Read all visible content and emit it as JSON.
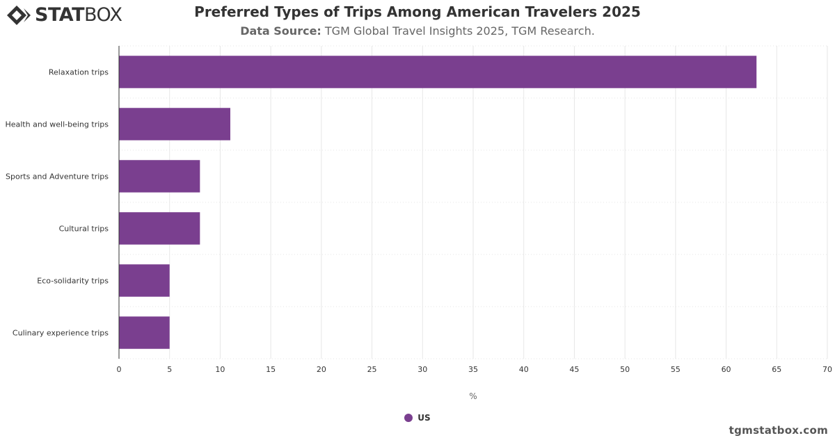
{
  "brand": {
    "logo_bold": "STAT",
    "logo_light": "BOX",
    "credit": "tgmstatbox.com"
  },
  "header": {
    "title": "Preferred Types of Trips Among American Travelers 2025",
    "source_label": "Data Source:",
    "source_text": " TGM Global Travel Insights 2025, TGM Research."
  },
  "colors": {
    "bar": "#7a3f8f",
    "grid": "#e6e6e6",
    "axis": "#333333"
  },
  "chart_data": {
    "type": "bar",
    "orientation": "horizontal",
    "categories": [
      "Relaxation trips",
      "Health and well-being trips",
      "Sports and Adventure trips",
      "Cultural trips",
      "Eco-solidarity trips",
      "Culinary experience trips"
    ],
    "series": [
      {
        "name": "US",
        "values": [
          63,
          11,
          8,
          8,
          5,
          5
        ]
      }
    ],
    "xlabel": "%",
    "ylabel": "",
    "xlim": [
      0,
      70
    ],
    "x_ticks": [
      0,
      5,
      10,
      15,
      20,
      25,
      30,
      35,
      40,
      45,
      50,
      55,
      60,
      65,
      70
    ],
    "grid": true,
    "legend_position": "bottom"
  }
}
